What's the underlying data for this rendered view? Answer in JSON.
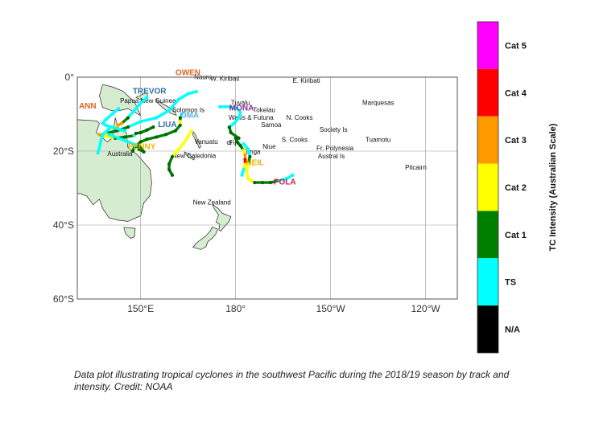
{
  "chart_data": {
    "type": "map-tracks",
    "x_ticks": [
      {
        "lon": 150,
        "label": "150°E"
      },
      {
        "lon": 180,
        "label": "180°"
      },
      {
        "lon": 210,
        "label": "150°W"
      },
      {
        "lon": 240,
        "label": "120°W"
      }
    ],
    "y_ticks": [
      {
        "lat": 0,
        "label": "0°"
      },
      {
        "lat": -20,
        "label": "20°S"
      },
      {
        "lat": -40,
        "label": "40°S"
      },
      {
        "lat": -60,
        "label": "60°S"
      }
    ],
    "xlim": [
      130,
      250
    ],
    "ylim": [
      -60,
      0
    ],
    "grid": true,
    "colorbar": {
      "title": "TC Intensity (Australian Scale)",
      "categories": [
        {
          "label": "Cat 5",
          "color": "#ff00ff"
        },
        {
          "label": "Cat 4",
          "color": "#ff0000"
        },
        {
          "label": "Cat 3",
          "color": "#ff9900"
        },
        {
          "label": "Cat 2",
          "color": "#ffff00"
        },
        {
          "label": "Cat 1",
          "color": "#008000"
        },
        {
          "label": "TS",
          "color": "#00ffff"
        },
        {
          "label": "N/A",
          "color": "#000000"
        }
      ]
    },
    "places": [
      {
        "name": "W. Kiribati",
        "lon": 172,
        "lat": -1
      },
      {
        "name": "Nauru",
        "lon": 166.9,
        "lat": -0.5
      },
      {
        "name": "E. Kiribati",
        "lon": 198,
        "lat": -1.5
      },
      {
        "name": "Papua New Guinea",
        "lon": 143.5,
        "lat": -7
      },
      {
        "name": "Solomon Is",
        "lon": 160,
        "lat": -9.5
      },
      {
        "name": "Tuvalu",
        "lon": 178.5,
        "lat": -7.5
      },
      {
        "name": "Tokelau",
        "lon": 185.5,
        "lat": -9.5
      },
      {
        "name": "Marquesas",
        "lon": 220,
        "lat": -7.5
      },
      {
        "name": "Wallis & Futuna",
        "lon": 177.8,
        "lat": -11.5
      },
      {
        "name": "N. Cooks",
        "lon": 196,
        "lat": -11.5
      },
      {
        "name": "Samoa",
        "lon": 188,
        "lat": -13.5
      },
      {
        "name": "Society Is",
        "lon": 206.5,
        "lat": -14.8
      },
      {
        "name": "Vanuatu",
        "lon": 167,
        "lat": -18
      },
      {
        "name": "Fiji",
        "lon": 178,
        "lat": -18.3
      },
      {
        "name": "S. Cooks",
        "lon": 194.5,
        "lat": -17.5
      },
      {
        "name": "Tuamotu",
        "lon": 221,
        "lat": -17.5
      },
      {
        "name": "Niue",
        "lon": 188.5,
        "lat": -19.3
      },
      {
        "name": "Fr. Polynesia",
        "lon": 205.5,
        "lat": -19.8
      },
      {
        "name": "Australia",
        "lon": 139.5,
        "lat": -21.3
      },
      {
        "name": "New Caledonia",
        "lon": 160,
        "lat": -21.8
      },
      {
        "name": "Tonga",
        "lon": 182.3,
        "lat": -20.8
      },
      {
        "name": "Austral Is",
        "lon": 206,
        "lat": -22
      },
      {
        "name": "Pitcairn",
        "lon": 233.5,
        "lat": -25
      },
      {
        "name": "New Zealand",
        "lon": 166.5,
        "lat": -34.5
      }
    ],
    "storms": [
      {
        "name": "OWEN",
        "color": "#e2641f",
        "label_lon": 161,
        "label_lat": 0.5,
        "track": [
          [
            167.6,
            -3.9,
            "TS"
          ],
          [
            165,
            -4.5,
            "TS"
          ],
          [
            162,
            -6,
            "TS"
          ],
          [
            159,
            -9,
            "TS"
          ],
          [
            155,
            -11,
            "TS"
          ],
          [
            150,
            -12,
            "TS"
          ],
          [
            146,
            -13.5,
            "Cat 1"
          ],
          [
            142.5,
            -14.5,
            "Cat 1"
          ],
          [
            139,
            -15.2,
            "Cat 2"
          ],
          [
            137,
            -15.5,
            "Cat 3"
          ],
          [
            139,
            -16,
            "Cat 2"
          ],
          [
            142,
            -16.5,
            "Cat 1"
          ],
          [
            145,
            -16.2,
            "Cat 1"
          ],
          [
            148,
            -15.8,
            "TS"
          ]
        ]
      },
      {
        "name": "TREVOR",
        "color": "#2e6fa6",
        "label_lon": 147.5,
        "label_lat": -4.5,
        "track": [
          [
            152,
            -5.5,
            "TS"
          ],
          [
            150,
            -7,
            "TS"
          ],
          [
            148,
            -9,
            "TS"
          ],
          [
            146,
            -11,
            "Cat 1"
          ],
          [
            144,
            -12.5,
            "Cat 3"
          ],
          [
            142,
            -13.5,
            "Cat 2"
          ],
          [
            140,
            -14,
            "TS"
          ],
          [
            138,
            -15.5,
            "TS"
          ],
          [
            137.5,
            -17,
            "TS"
          ],
          [
            137,
            -19,
            "TS"
          ],
          [
            136.5,
            -20.5,
            "TS"
          ]
        ]
      },
      {
        "name": "ANN",
        "color": "#e2641f",
        "label_lon": 130.5,
        "label_lat": -8.5,
        "track": [
          [
            143,
            -8.5,
            "TS"
          ],
          [
            141,
            -10,
            "TS"
          ],
          [
            139,
            -11.5,
            "TS"
          ],
          [
            138,
            -12.5,
            "TS"
          ],
          [
            139,
            -13,
            "TS"
          ],
          [
            141,
            -13.5,
            "TS"
          ],
          [
            143,
            -14,
            "TS"
          ],
          [
            145,
            -14.5,
            "TS"
          ]
        ]
      },
      {
        "name": "OMA",
        "color": "#5aaee0",
        "label_lon": 162.5,
        "label_lat": -11,
        "track": [
          [
            163,
            -10,
            "TS"
          ],
          [
            162.5,
            -11,
            "Cat 1"
          ],
          [
            162.5,
            -12,
            "Cat 2"
          ],
          [
            162.5,
            -13,
            "Cat 1"
          ],
          [
            161,
            -14.5,
            "Cat 1"
          ],
          [
            158,
            -15.5,
            "Cat 1"
          ],
          [
            155,
            -16.2,
            "Cat 1"
          ],
          [
            152,
            -16.8,
            "Cat 1"
          ],
          [
            150,
            -17.5,
            "Cat 1"
          ],
          [
            148,
            -19,
            "Cat 1"
          ],
          [
            147.5,
            -20,
            "Cat 1"
          ]
        ]
      },
      {
        "name": "LIUA",
        "color": "#2e6fa6",
        "label_lon": 155.5,
        "label_lat": -13.5,
        "track": [
          [
            154,
            -13.5,
            "Cat 1"
          ],
          [
            152,
            -14.3,
            "Cat 1"
          ],
          [
            150,
            -15,
            "Cat 1"
          ],
          [
            148.5,
            -15.2,
            "Cat 1"
          ]
        ]
      },
      {
        "name": "PENNY",
        "color": "#e8b400",
        "label_lon": 146,
        "label_lat": -19.5,
        "track": [
          [
            140,
            -15.5,
            "TS"
          ],
          [
            143,
            -16.5,
            "TS"
          ],
          [
            146,
            -17.5,
            "TS"
          ],
          [
            148.5,
            -18.3,
            "TS"
          ],
          [
            149.5,
            -19.5,
            "Cat 1"
          ],
          [
            151,
            -20.2,
            "Cat 1"
          ],
          [
            150,
            -19,
            "Cat 1"
          ],
          [
            148,
            -18.5,
            "TS"
          ]
        ]
      },
      {
        "name": "MONA",
        "color": "#8a2a9e",
        "label_lon": 178,
        "label_lat": -9,
        "track": [
          [
            175,
            -8,
            "TS"
          ],
          [
            178,
            -8,
            "TS"
          ],
          [
            180.5,
            -8.5,
            "TS"
          ],
          [
            181.5,
            -9.5,
            "TS"
          ],
          [
            181,
            -11,
            "TS"
          ],
          [
            179.5,
            -12.5,
            "TS"
          ],
          [
            178,
            -13.5,
            "Cat 1"
          ],
          [
            178.5,
            -15,
            "Cat 1"
          ],
          [
            181,
            -16.5,
            "Cat 1"
          ]
        ]
      },
      {
        "name": "",
        "color": "#e8b400",
        "label_lon": 0,
        "label_lat": 0,
        "track": [
          [
            166,
            -14.5,
            "Cat 2"
          ],
          [
            165,
            -16,
            "Cat 2"
          ],
          [
            163.5,
            -18,
            "Cat 2"
          ],
          [
            162,
            -19.5,
            "Cat 2"
          ],
          [
            160,
            -21.5,
            "Cat 1"
          ],
          [
            159,
            -23.5,
            "Cat 1"
          ],
          [
            159,
            -25,
            "Cat 1"
          ],
          [
            160,
            -26.5,
            "Cat 1"
          ]
        ]
      },
      {
        "name": "NEIL",
        "color": "#e8b400",
        "label_lon": 183.2,
        "label_lat": -23.8,
        "track": [
          [
            180,
            -16.5,
            "Cat 1"
          ],
          [
            180.5,
            -17.5,
            "Cat 1"
          ],
          [
            181.5,
            -18.5,
            "Cat 1"
          ],
          [
            182.5,
            -19.8,
            "Cat 2"
          ],
          [
            183,
            -21,
            "Cat 3"
          ],
          [
            183,
            -22.3,
            "Cat 4"
          ],
          [
            183,
            -23.6,
            "Cat 2"
          ],
          [
            182.5,
            -25,
            "TS"
          ],
          [
            182,
            -26.5,
            "TS"
          ]
        ]
      },
      {
        "name": "POLA",
        "color": "#cc1a4a",
        "label_lon": 192,
        "label_lat": -29,
        "track": [
          [
            182.5,
            -18,
            "TS"
          ],
          [
            184,
            -19.5,
            "TS"
          ],
          [
            184.5,
            -21.5,
            "Cat 1"
          ],
          [
            184,
            -23.5,
            "Cat 2"
          ],
          [
            183.5,
            -25.5,
            "Cat 2"
          ],
          [
            184,
            -27.5,
            "Cat 2"
          ],
          [
            186,
            -28.5,
            "Cat 1"
          ],
          [
            188.5,
            -28.5,
            "Cat 1"
          ],
          [
            191,
            -28.5,
            "Cat 1"
          ],
          [
            193.5,
            -28,
            "TS"
          ],
          [
            196,
            -27.5,
            "TS"
          ],
          [
            198,
            -26.5,
            "TS"
          ]
        ]
      }
    ]
  },
  "caption": "Data plot illustrating tropical cyclones in the southwest Pacific during the 2018/19 season by track and intensity. Credit: NOAA"
}
